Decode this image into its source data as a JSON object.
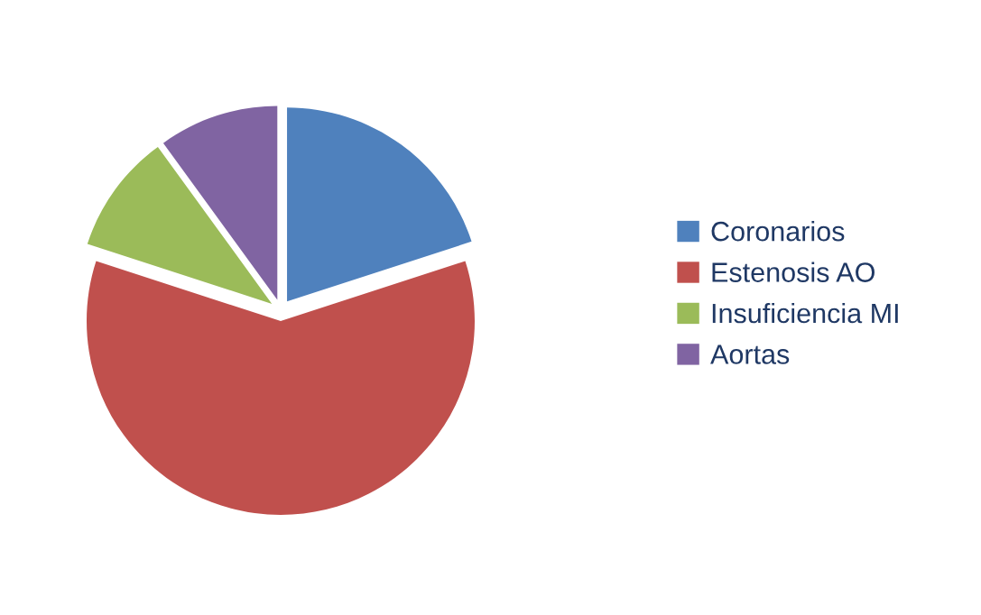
{
  "chart_data": {
    "type": "pie",
    "categories": [
      "Coronarios",
      "Estenosis AO",
      "Insuficiencia MI",
      "Aortas"
    ],
    "values": [
      20,
      60,
      10,
      10
    ],
    "colors": [
      "#4f81bd",
      "#c0504d",
      "#9bbb59",
      "#8064a2"
    ],
    "legend": "right"
  }
}
